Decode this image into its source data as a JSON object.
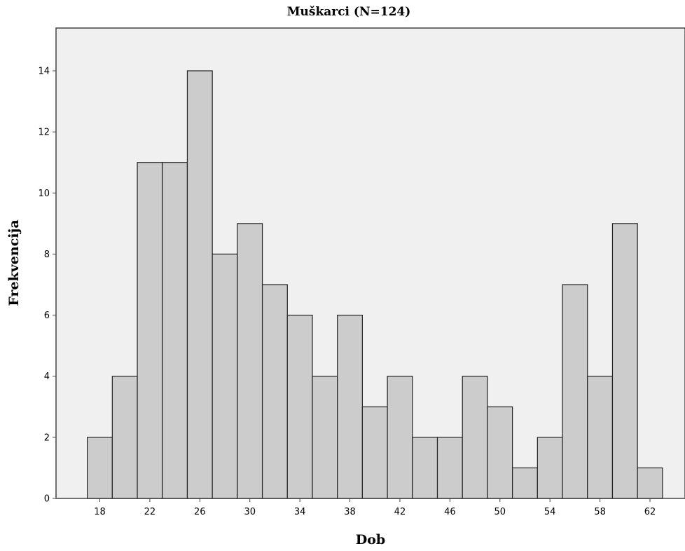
{
  "chart_data": {
    "type": "bar",
    "title": "Muškarci (N=124)",
    "xlabel": "Dob",
    "ylabel": "Frekvencija",
    "bins": [
      [
        17,
        19
      ],
      [
        19,
        21
      ],
      [
        21,
        23
      ],
      [
        23,
        25
      ],
      [
        25,
        27
      ],
      [
        27,
        29
      ],
      [
        29,
        31
      ],
      [
        31,
        33
      ],
      [
        33,
        35
      ],
      [
        35,
        37
      ],
      [
        37,
        39
      ],
      [
        39,
        41
      ],
      [
        41,
        43
      ],
      [
        43,
        45
      ],
      [
        45,
        47
      ],
      [
        47,
        49
      ],
      [
        49,
        51
      ],
      [
        51,
        53
      ],
      [
        53,
        55
      ],
      [
        55,
        57
      ],
      [
        57,
        59
      ],
      [
        59,
        61
      ],
      [
        61,
        63
      ]
    ],
    "values": [
      2,
      4,
      11,
      11,
      14,
      8,
      9,
      7,
      6,
      4,
      6,
      3,
      4,
      2,
      2,
      4,
      3,
      1,
      2,
      7,
      4,
      9,
      1
    ],
    "xticks": [
      "18",
      "22",
      "26",
      "30",
      "34",
      "38",
      "42",
      "46",
      "50",
      "54",
      "58",
      "62"
    ],
    "yticks": [
      "0",
      "2",
      "4",
      "6",
      "8",
      "10",
      "12",
      "14"
    ],
    "xlim": [
      14.5,
      64.8
    ],
    "ylim": [
      0,
      15.4
    ],
    "grid": false,
    "colors": {
      "bar_fill": "#cccccc",
      "bar_stroke": "#222222",
      "plot_bg": "#f0f0f0",
      "frame": "#444444"
    }
  }
}
